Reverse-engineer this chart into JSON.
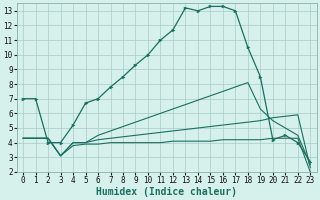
{
  "bg_color": "#d6f0ec",
  "grid_color": "#a8ccc8",
  "line_color": "#1a7060",
  "xlabel": "Humidex (Indice chaleur)",
  "xlim": [
    -0.5,
    23.5
  ],
  "ylim": [
    2,
    13.5
  ],
  "xticks": [
    0,
    1,
    2,
    3,
    4,
    5,
    6,
    7,
    8,
    9,
    10,
    11,
    12,
    13,
    14,
    15,
    16,
    17,
    18,
    19,
    20,
    21,
    22,
    23
  ],
  "yticks": [
    2,
    3,
    4,
    5,
    6,
    7,
    8,
    9,
    10,
    11,
    12,
    13
  ],
  "line_main_x": [
    0,
    1,
    2,
    3,
    4,
    5,
    6,
    7,
    8,
    9,
    10,
    11,
    12,
    13,
    14,
    15,
    16,
    17,
    18,
    19,
    20,
    21,
    22,
    23
  ],
  "line_main_y": [
    7.0,
    7.0,
    4.0,
    4.0,
    5.2,
    6.7,
    7.0,
    7.8,
    8.5,
    9.3,
    10.0,
    11.0,
    11.7,
    13.2,
    13.0,
    13.3,
    13.3,
    13.0,
    10.5,
    8.5,
    4.2,
    4.5,
    4.0,
    2.7
  ],
  "line_a_x": [
    0,
    1,
    2,
    3,
    4,
    5,
    6,
    7,
    8,
    9,
    10,
    11,
    12,
    13,
    14,
    15,
    16,
    17,
    18,
    19,
    20,
    21,
    22,
    23
  ],
  "line_a_y": [
    4.3,
    4.3,
    4.3,
    3.1,
    4.0,
    4.0,
    4.5,
    4.8,
    5.1,
    5.4,
    5.7,
    6.0,
    6.3,
    6.6,
    6.9,
    7.2,
    7.5,
    7.8,
    8.1,
    6.3,
    5.5,
    5.0,
    4.5,
    2.5
  ],
  "line_b_x": [
    0,
    1,
    2,
    3,
    4,
    5,
    6,
    7,
    8,
    9,
    10,
    11,
    12,
    13,
    14,
    15,
    16,
    17,
    18,
    19,
    20,
    21,
    22,
    23
  ],
  "line_b_y": [
    4.3,
    4.3,
    4.3,
    3.1,
    4.0,
    4.0,
    4.2,
    4.3,
    4.4,
    4.5,
    4.6,
    4.7,
    4.8,
    4.9,
    5.0,
    5.1,
    5.2,
    5.3,
    5.4,
    5.5,
    5.7,
    5.8,
    5.9,
    2.3
  ],
  "line_c_x": [
    0,
    1,
    2,
    3,
    4,
    5,
    6,
    7,
    8,
    9,
    10,
    11,
    12,
    13,
    14,
    15,
    16,
    17,
    18,
    19,
    20,
    21,
    22,
    23
  ],
  "line_c_y": [
    4.3,
    4.3,
    4.3,
    3.1,
    3.8,
    3.9,
    3.9,
    4.0,
    4.0,
    4.0,
    4.0,
    4.0,
    4.1,
    4.1,
    4.1,
    4.1,
    4.2,
    4.2,
    4.2,
    4.2,
    4.3,
    4.3,
    4.3,
    2.0
  ],
  "tick_fontsize": 5.5,
  "xlabel_fontsize": 7
}
